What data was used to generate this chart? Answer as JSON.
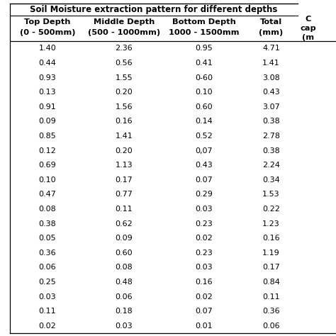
{
  "title_main": "Soil Moisture extraction pattern for different depths",
  "col_headers_line1": [
    "Top Depth",
    "Middle Depth",
    "Bottom Depth",
    "Total",
    "C"
  ],
  "col_headers_line2": [
    "(0 - 500mm)",
    "(500 - 1000mm)",
    "1000 - 1500mm",
    "(mm)",
    "cap"
  ],
  "col_headers_line3": [
    "",
    "",
    "",
    "",
    "(m"
  ],
  "rows": [
    [
      "1.40",
      "2.36",
      "0.95",
      "4.71",
      ""
    ],
    [
      "0.44",
      "0.56",
      "0.41",
      "1.41",
      ""
    ],
    [
      "0.93",
      "1.55",
      "0-60",
      "3.08",
      ""
    ],
    [
      "0.13",
      "0.20",
      "0.10",
      "0.43",
      ""
    ],
    [
      "0.91",
      "1.56",
      "0.60",
      "3.07",
      ""
    ],
    [
      "0.09",
      "0.16",
      "0.14",
      "0.38",
      ""
    ],
    [
      "0.85",
      "1.41",
      "0.52",
      "2.78",
      ""
    ],
    [
      "0.12",
      "0.20",
      "0,07",
      "0.38",
      ""
    ],
    [
      "0.69",
      "1.13",
      "0.43",
      "2.24",
      ""
    ],
    [
      "0.10",
      "0.17",
      "0.07",
      "0.34",
      ""
    ],
    [
      "0.47",
      "0.77",
      "0.29",
      "1.53",
      ""
    ],
    [
      "0.08",
      "0.11",
      "0.03",
      "0.22",
      ""
    ],
    [
      "0.38",
      "0.62",
      "0.23",
      "1.23",
      ""
    ],
    [
      "0.05",
      "0.09",
      "0.02",
      "0.16",
      ""
    ],
    [
      "0.36",
      "0.60",
      "0.23",
      "1.19",
      ""
    ],
    [
      "0.06",
      "0.08",
      "0.03",
      "0.17",
      ""
    ],
    [
      "0.25",
      "0.48",
      "0.16",
      "0.84",
      ""
    ],
    [
      "0.03",
      "0.06",
      "0.02",
      "0.11",
      ""
    ],
    [
      "0.11",
      "0.18",
      "0.07",
      "0.36",
      ""
    ],
    [
      "0.02",
      "0.03",
      "0.01",
      "0.06",
      ""
    ]
  ],
  "background_color": "#ffffff",
  "text_color": "#000000",
  "data_fontsize": 8.0,
  "header_fontsize": 8.2
}
